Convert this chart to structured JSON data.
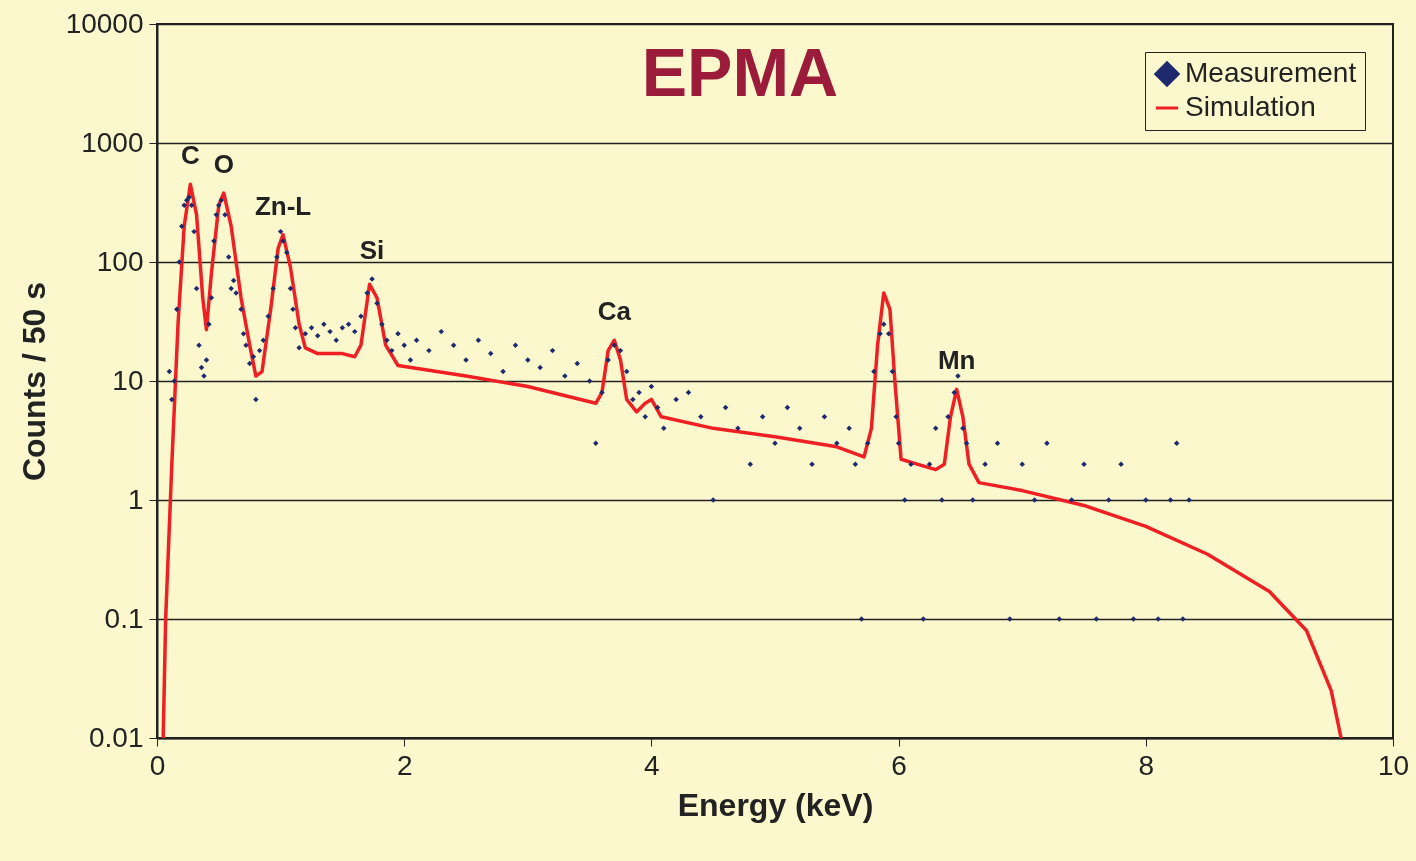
{
  "chart_data": {
    "type": "scatter",
    "title": "EPMA",
    "xlabel": "Energy (keV)",
    "ylabel": "Counts / 50 s",
    "xlim": [
      0,
      10
    ],
    "xticks": [
      0,
      2,
      4,
      6,
      8,
      10
    ],
    "ylim": [
      0.01,
      10000
    ],
    "yticks": [
      0.01,
      0.1,
      1,
      10,
      100,
      1000,
      10000
    ],
    "log": true,
    "grid": "y",
    "legend": "top right",
    "line_style": "solid",
    "annotations": [
      {
        "text": "C",
        "x": 0.27,
        "y": 450
      },
      {
        "text": "O",
        "x": 0.54,
        "y": 380
      },
      {
        "text": "Zn-L",
        "x": 1.02,
        "y": 170
      },
      {
        "text": "Si",
        "x": 1.74,
        "y": 72
      },
      {
        "text": "Ca",
        "x": 3.7,
        "y": 22
      },
      {
        "text": "Mn",
        "x": 6.47,
        "y": 8.5
      }
    ],
    "series": [
      {
        "name": "Measurement",
        "marker": "diamond",
        "color": "#1f2a6e",
        "x": [
          0.1,
          0.12,
          0.14,
          0.16,
          0.18,
          0.2,
          0.22,
          0.24,
          0.26,
          0.28,
          0.3,
          0.32,
          0.34,
          0.36,
          0.38,
          0.4,
          0.42,
          0.44,
          0.46,
          0.48,
          0.5,
          0.52,
          0.55,
          0.58,
          0.6,
          0.62,
          0.64,
          0.68,
          0.7,
          0.72,
          0.75,
          0.78,
          0.8,
          0.83,
          0.86,
          0.9,
          0.94,
          0.97,
          1.0,
          1.02,
          1.05,
          1.08,
          1.1,
          1.12,
          1.15,
          1.2,
          1.25,
          1.3,
          1.35,
          1.4,
          1.45,
          1.5,
          1.55,
          1.6,
          1.65,
          1.7,
          1.74,
          1.78,
          1.82,
          1.86,
          1.9,
          1.95,
          2.0,
          2.05,
          2.1,
          2.2,
          2.3,
          2.4,
          2.5,
          2.6,
          2.7,
          2.8,
          2.9,
          3.0,
          3.1,
          3.2,
          3.3,
          3.4,
          3.5,
          3.55,
          3.6,
          3.65,
          3.7,
          3.75,
          3.8,
          3.85,
          3.9,
          3.95,
          4.0,
          4.05,
          4.1,
          4.2,
          4.3,
          4.4,
          4.5,
          4.6,
          4.7,
          4.8,
          4.9,
          5.0,
          5.1,
          5.2,
          5.3,
          5.4,
          5.5,
          5.6,
          5.65,
          5.7,
          5.75,
          5.8,
          5.85,
          5.88,
          5.92,
          5.95,
          5.98,
          6.0,
          6.05,
          6.1,
          6.2,
          6.25,
          6.3,
          6.35,
          6.4,
          6.45,
          6.48,
          6.52,
          6.55,
          6.6,
          6.7,
          6.8,
          6.9,
          7.0,
          7.1,
          7.2,
          7.3,
          7.4,
          7.5,
          7.6,
          7.7,
          7.8,
          7.9,
          8.0,
          8.1,
          8.2,
          8.25,
          8.3,
          8.35
        ],
        "values": [
          12,
          7,
          10,
          40,
          100,
          200,
          300,
          330,
          350,
          300,
          180,
          60,
          20,
          13,
          11,
          15,
          30,
          50,
          150,
          250,
          300,
          330,
          250,
          110,
          60,
          70,
          55,
          40,
          25,
          20,
          14,
          16,
          7,
          18,
          22,
          35,
          60,
          110,
          180,
          150,
          120,
          60,
          40,
          28,
          19,
          25,
          28,
          24,
          30,
          26,
          22,
          28,
          30,
          26,
          35,
          55,
          72,
          45,
          30,
          22,
          18,
          25,
          20,
          15,
          22,
          18,
          26,
          20,
          15,
          22,
          17,
          12,
          20,
          15,
          13,
          18,
          11,
          14,
          10,
          3,
          8,
          15,
          20,
          18,
          12,
          7,
          8,
          5,
          9,
          6,
          4,
          7,
          8,
          5,
          1,
          6,
          4,
          2,
          5,
          3,
          6,
          4,
          2,
          5,
          3,
          4,
          2,
          0.1,
          3,
          12,
          25,
          30,
          25,
          12,
          5,
          3,
          1,
          2,
          0.1,
          2,
          4,
          1,
          5,
          8,
          11,
          4,
          3,
          1,
          2,
          3,
          0.1,
          2,
          1,
          3,
          0.1,
          1,
          2,
          0.1,
          1,
          2,
          0.1,
          1,
          0.1,
          1,
          3,
          0.1,
          1
        ]
      },
      {
        "name": "Simulation",
        "type": "line",
        "color": "#ee2024",
        "x": [
          0.05,
          0.07,
          0.12,
          0.17,
          0.22,
          0.27,
          0.32,
          0.37,
          0.4,
          0.44,
          0.5,
          0.54,
          0.6,
          0.68,
          0.75,
          0.8,
          0.85,
          0.92,
          0.98,
          1.02,
          1.08,
          1.15,
          1.2,
          1.3,
          1.5,
          1.6,
          1.65,
          1.72,
          1.78,
          1.85,
          1.95,
          2.5,
          3.0,
          3.55,
          3.6,
          3.65,
          3.7,
          3.75,
          3.8,
          3.88,
          3.95,
          4.0,
          4.08,
          4.5,
          5.0,
          5.5,
          5.72,
          5.78,
          5.83,
          5.88,
          5.93,
          5.97,
          6.02,
          6.15,
          6.3,
          6.37,
          6.42,
          6.47,
          6.52,
          6.57,
          6.65,
          7.0,
          7.5,
          8.0,
          8.5,
          9.0,
          9.3,
          9.5,
          9.58
        ],
        "values": [
          0.01,
          0.1,
          2,
          30,
          200,
          450,
          250,
          50,
          27,
          80,
          300,
          380,
          200,
          50,
          20,
          11,
          12,
          40,
          130,
          170,
          90,
          30,
          19,
          17,
          17,
          16,
          20,
          65,
          50,
          20,
          13.5,
          11,
          9,
          6.5,
          8,
          18,
          22,
          15,
          7,
          5.5,
          6.5,
          7,
          5,
          4,
          3.4,
          2.8,
          2.3,
          4,
          20,
          55,
          40,
          10,
          2.2,
          2,
          1.8,
          2,
          5,
          8.5,
          5,
          2,
          1.4,
          1.2,
          0.9,
          0.6,
          0.35,
          0.17,
          0.08,
          0.025,
          0.01
        ]
      }
    ]
  }
}
